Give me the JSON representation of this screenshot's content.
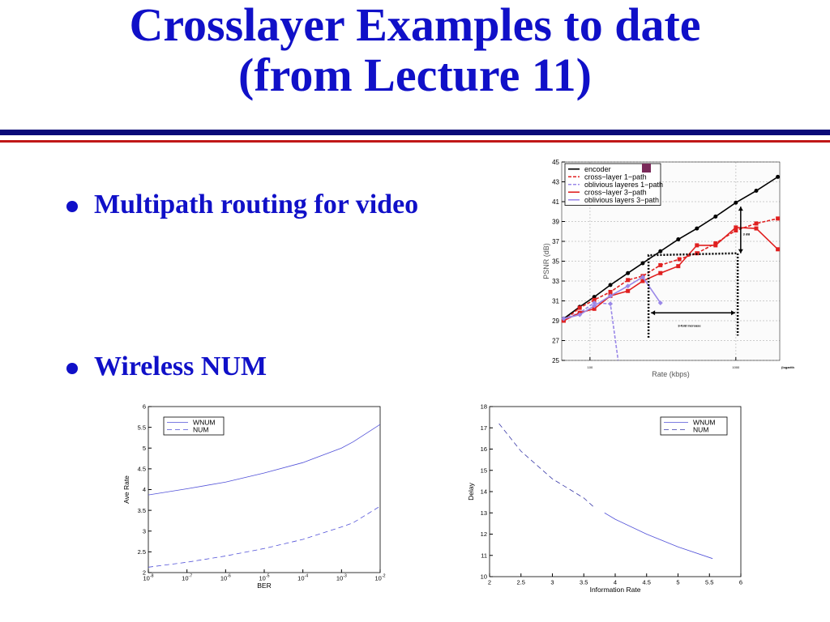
{
  "slide": {
    "title_line1": "Crosslayer Examples to date",
    "title_line2": "(from Lecture 11)",
    "bullets": [
      "Multipath routing for video",
      "Wireless NUM"
    ]
  },
  "chart_data": [
    {
      "type": "line",
      "xlabel": "Rate (kbps)",
      "ylabel": "PSNR (dB)",
      "xscale": "log",
      "xlim": [
        64,
        2000
      ],
      "ylim": [
        25,
        45
      ],
      "xticks": [
        100,
        1000
      ],
      "xtick_labels": [
        "100",
        "1000"
      ],
      "yticks": [
        25,
        27,
        29,
        31,
        33,
        35,
        37,
        39,
        41,
        43,
        45
      ],
      "grid": true,
      "legend": "top-left",
      "x_note": "(logarithmic scale)",
      "annotations": [
        "3-fold increase",
        "3 dB"
      ],
      "series": [
        {
          "name": "encoder",
          "color": "#000000",
          "dash": false,
          "x": [
            66,
            85,
            107,
            138,
            182,
            230,
            304,
            403,
            541,
            726,
            1000,
            1380,
            1940
          ],
          "y": [
            29.2,
            30.4,
            31.4,
            32.6,
            33.8,
            34.8,
            36.0,
            37.2,
            38.3,
            39.5,
            40.9,
            42.1,
            43.5
          ]
        },
        {
          "name": "cross−layer 1−path",
          "color": "#e02020",
          "dash": true,
          "x": [
            66,
            85,
            107,
            138,
            182,
            230,
            304,
            410,
            541,
            726,
            1000,
            1380,
            1940
          ],
          "y": [
            29.0,
            30.3,
            31.1,
            31.9,
            33.1,
            33.5,
            34.6,
            35.2,
            35.8,
            36.8,
            38.1,
            38.8,
            39.3
          ]
        },
        {
          "name": "oblivious layeres 1−path",
          "color": "#9a88e8",
          "dash": true,
          "x": [
            66,
            85,
            107,
            138,
            156
          ],
          "y": [
            29.2,
            29.8,
            30.8,
            30.7,
            25
          ]
        },
        {
          "name": "cross−layer 3−path",
          "color": "#e02020",
          "dash": false,
          "x": [
            66,
            85,
            107,
            138,
            182,
            230,
            304,
            403,
            541,
            726,
            1000,
            1380,
            1940
          ],
          "y": [
            29.0,
            29.8,
            30.2,
            31.5,
            32.0,
            33.0,
            33.8,
            34.5,
            36.6,
            36.6,
            38.4,
            38.3,
            36.2
          ]
        },
        {
          "name": "oblivious layers 3−path",
          "color": "#9a88e8",
          "dash": false,
          "x": [
            66,
            85,
            107,
            138,
            182,
            230,
            304
          ],
          "y": [
            29.2,
            29.6,
            30.5,
            31.5,
            32.5,
            33.4,
            30.8
          ]
        }
      ]
    },
    {
      "type": "line",
      "xlabel": "BER",
      "ylabel": "Ave Rate",
      "xscale": "log",
      "xlim": [
        1e-08,
        0.01
      ],
      "ylim": [
        2,
        6
      ],
      "xtick_labels": [
        "10-8",
        "10-7",
        "10-6",
        "10-5",
        "10-4",
        "10-3",
        "10-2"
      ],
      "yticks": [
        2,
        2.5,
        3,
        3.5,
        4,
        4.5,
        5,
        5.5,
        6
      ],
      "legend": "top-left",
      "series": [
        {
          "name": "WNUM",
          "color": "#5050d8",
          "dash": false,
          "x": [
            1e-08,
            1e-07,
            1e-06,
            1e-05,
            0.0001,
            0.001,
            0.002,
            0.01
          ],
          "y": [
            3.87,
            4.02,
            4.18,
            4.4,
            4.65,
            5.0,
            5.15,
            5.57
          ]
        },
        {
          "name": "NUM",
          "color": "#5050d8",
          "dash": true,
          "x": [
            1e-08,
            1e-07,
            1e-06,
            1e-05,
            0.0001,
            0.001,
            0.002,
            0.01
          ],
          "y": [
            2.13,
            2.25,
            2.4,
            2.58,
            2.8,
            3.1,
            3.2,
            3.6
          ]
        }
      ]
    },
    {
      "type": "line",
      "xlabel": "Information Rate",
      "ylabel": "Delay",
      "xscale": "linear",
      "xlim": [
        2,
        6
      ],
      "ylim": [
        10,
        18
      ],
      "xticks": [
        2,
        2.5,
        3,
        3.5,
        4,
        4.5,
        5,
        5.5,
        6
      ],
      "yticks": [
        10,
        11,
        12,
        13,
        14,
        15,
        16,
        17,
        18
      ],
      "legend": "top-right",
      "series": [
        {
          "name": "WNUM",
          "color": "#5050d8",
          "dash": false,
          "x": [
            3.83,
            4,
            4.5,
            5,
            5.55
          ],
          "y": [
            13.0,
            12.7,
            12.0,
            11.4,
            10.85
          ]
        },
        {
          "name": "NUM",
          "color": "#3a3aa8",
          "dash": true,
          "x": [
            2.15,
            2.5,
            3,
            3.5,
            3.65
          ],
          "y": [
            17.2,
            15.9,
            14.6,
            13.7,
            13.3
          ]
        }
      ]
    }
  ]
}
